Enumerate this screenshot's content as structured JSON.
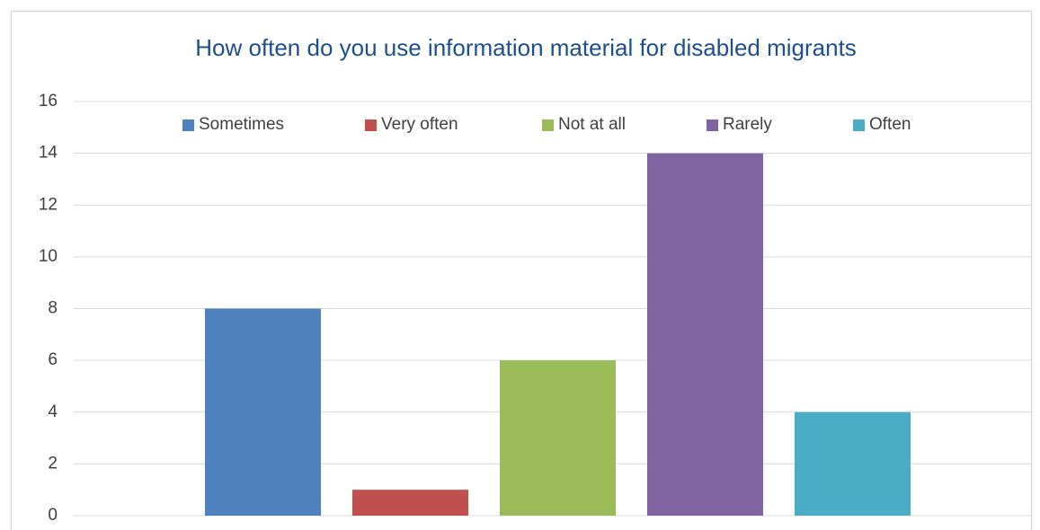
{
  "chart_data": {
    "type": "bar",
    "title": "How often do you use information material for disabled migrants",
    "categories": [
      null
    ],
    "series": [
      {
        "name": "Sometimes",
        "color": "#4f81bd",
        "values": [
          8
        ]
      },
      {
        "name": "Very often",
        "color": "#c0504d",
        "values": [
          1
        ]
      },
      {
        "name": "Not at all",
        "color": "#9bbb59",
        "values": [
          6
        ]
      },
      {
        "name": "Rarely",
        "color": "#8064a2",
        "values": [
          14
        ]
      },
      {
        "name": "Often",
        "color": "#4bacc6",
        "values": [
          4
        ]
      }
    ],
    "ylim": [
      0,
      16
    ],
    "yticks": [
      0,
      2,
      4,
      6,
      8,
      10,
      12,
      14,
      16
    ],
    "grid": true,
    "legend": "top"
  }
}
